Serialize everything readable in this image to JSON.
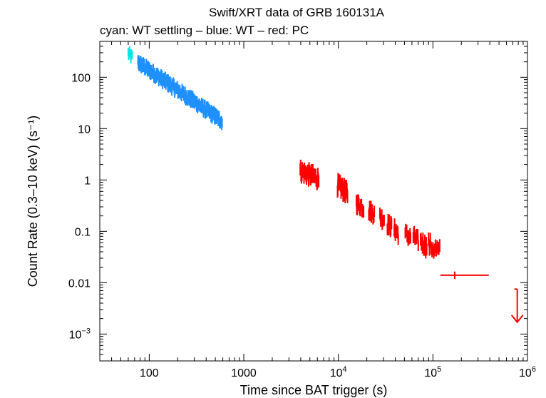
{
  "chart_data": {
    "type": "scatter",
    "title": "Swift/XRT data of GRB 160131A",
    "subtitle": "cyan: WT settling – blue: WT – red: PC",
    "xlabel": "Time since BAT trigger (s)",
    "ylabel": "Count Rate (0.3–10 keV) (s⁻¹)",
    "xscale": "log",
    "yscale": "log",
    "xlim": [
      30,
      1000000
    ],
    "ylim": [
      0.0003,
      500
    ],
    "x_ticks": [
      {
        "value": 100,
        "label": "100",
        "sup": ""
      },
      {
        "value": 1000,
        "label": "1000",
        "sup": ""
      },
      {
        "value": 10000,
        "label": "10",
        "sup": "4"
      },
      {
        "value": 100000,
        "label": "10",
        "sup": "5"
      },
      {
        "value": 1000000,
        "label": "10",
        "sup": "6"
      }
    ],
    "y_ticks": [
      {
        "value": 100,
        "label": "100",
        "sup": ""
      },
      {
        "value": 10,
        "label": "10",
        "sup": ""
      },
      {
        "value": 1,
        "label": "1",
        "sup": ""
      },
      {
        "value": 0.1,
        "label": "0.1",
        "sup": ""
      },
      {
        "value": 0.01,
        "label": "0.01",
        "sup": ""
      },
      {
        "value": 0.001,
        "label": "10",
        "sup": "−3"
      }
    ],
    "series": [
      {
        "name": "WT settling",
        "color": "#00e5e5",
        "segments": [
          {
            "t0": 60,
            "t1": 66,
            "r0": 290,
            "r1": 240,
            "scatter": 0.09,
            "n": 10
          }
        ]
      },
      {
        "name": "WT",
        "color": "#1e90ff",
        "segments": [
          {
            "t0": 76,
            "t1": 590,
            "r0": 195,
            "r1": 14,
            "scatter": 0.1,
            "n": 260
          }
        ]
      },
      {
        "name": "PC",
        "color": "#ff0000",
        "segments": [
          {
            "t0": 3950,
            "t1": 6200,
            "r0": 1.5,
            "r1": 1.05,
            "scatter": 0.13,
            "n": 45
          },
          {
            "t0": 9800,
            "t1": 12500,
            "r0": 0.8,
            "r1": 0.55,
            "scatter": 0.13,
            "n": 35
          },
          {
            "t0": 15500,
            "t1": 18500,
            "r0": 0.35,
            "r1": 0.29,
            "scatter": 0.12,
            "n": 18
          },
          {
            "t0": 21000,
            "t1": 24000,
            "r0": 0.26,
            "r1": 0.22,
            "scatter": 0.12,
            "n": 14
          },
          {
            "t0": 27500,
            "t1": 30500,
            "r0": 0.19,
            "r1": 0.17,
            "scatter": 0.12,
            "n": 12
          },
          {
            "t0": 33000,
            "t1": 36500,
            "r0": 0.14,
            "r1": 0.12,
            "scatter": 0.12,
            "n": 12
          },
          {
            "t0": 39000,
            "t1": 43000,
            "r0": 0.11,
            "r1": 0.09,
            "scatter": 0.12,
            "n": 12
          },
          {
            "t0": 51000,
            "t1": 58000,
            "r0": 0.09,
            "r1": 0.075,
            "scatter": 0.12,
            "n": 12
          },
          {
            "t0": 62000,
            "t1": 70000,
            "r0": 0.08,
            "r1": 0.065,
            "scatter": 0.12,
            "n": 12
          },
          {
            "t0": 74000,
            "t1": 86000,
            "r0": 0.065,
            "r1": 0.05,
            "scatter": 0.13,
            "n": 14
          },
          {
            "t0": 90000,
            "t1": 118000,
            "r0": 0.055,
            "r1": 0.04,
            "scatter": 0.14,
            "n": 14
          }
        ],
        "points": [
          {
            "x": 170000,
            "y": 0.014,
            "xerr_low": 120000,
            "xerr_high": 390000,
            "yerr_low": 0.0118,
            "yerr_high": 0.0165
          }
        ],
        "upper_limits": [
          {
            "x": 780000,
            "y_top": 0.0075,
            "y_arrow": 0.0017
          }
        ]
      }
    ]
  }
}
